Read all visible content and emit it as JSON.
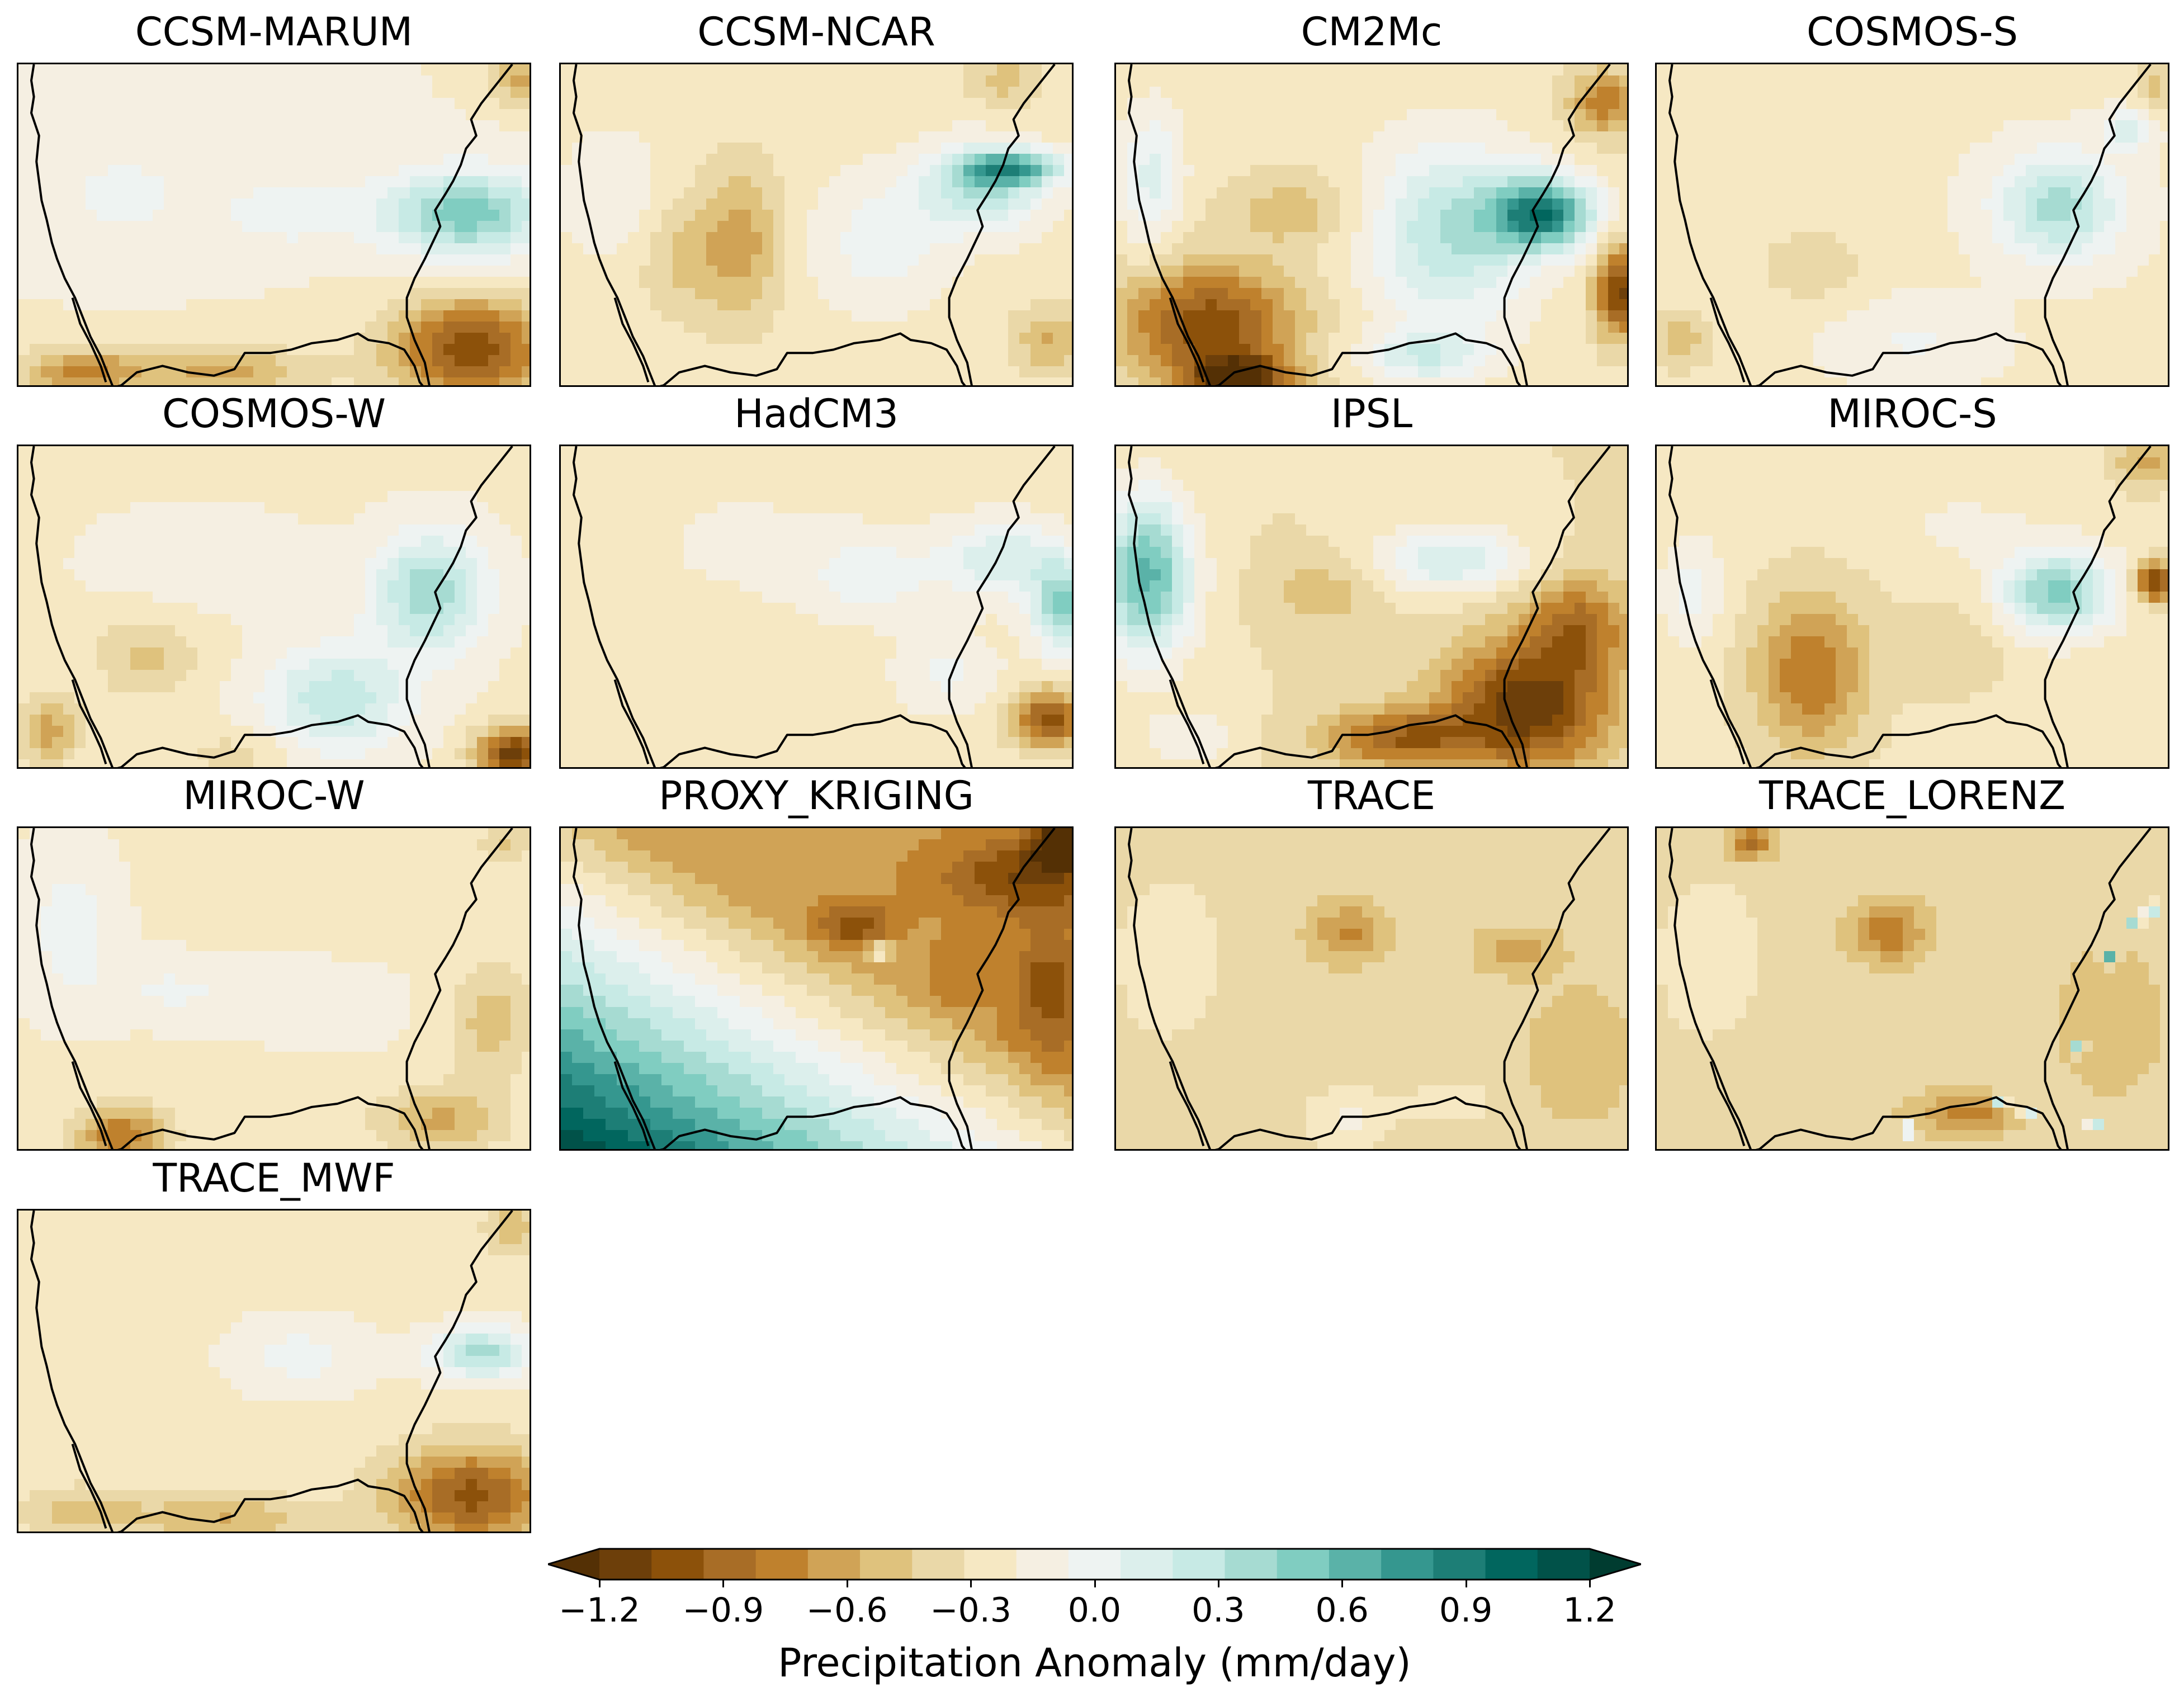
{
  "panels": [
    {
      "title": "CCSM-MARUM",
      "base": 0.15,
      "blobs": [
        [
          0.87,
          0.46,
          0.16,
          0.13,
          0.85
        ],
        [
          0.52,
          0.46,
          0.14,
          0.1,
          0.25
        ],
        [
          0.88,
          0.88,
          0.16,
          0.16,
          -1.0
        ],
        [
          0.4,
          0.95,
          0.18,
          0.08,
          -0.5
        ],
        [
          0.12,
          0.95,
          0.12,
          0.08,
          -0.6
        ],
        [
          0.98,
          0.05,
          0.06,
          0.08,
          -0.5
        ],
        [
          0.2,
          0.4,
          0.15,
          0.15,
          0.2
        ]
      ]
    },
    {
      "title": "CCSM-NCAR",
      "base": 0.08,
      "blobs": [
        [
          0.82,
          0.38,
          0.12,
          0.13,
          0.7
        ],
        [
          0.88,
          0.32,
          0.1,
          0.05,
          0.9
        ],
        [
          0.35,
          0.55,
          0.08,
          0.24,
          -0.45
        ],
        [
          0.23,
          0.6,
          0.08,
          0.18,
          -0.25
        ],
        [
          0.62,
          0.55,
          0.13,
          0.2,
          0.3
        ],
        [
          0.95,
          0.85,
          0.07,
          0.1,
          -0.4
        ],
        [
          0.86,
          0.05,
          0.07,
          0.08,
          -0.3
        ],
        [
          0.1,
          0.4,
          0.1,
          0.2,
          0.2
        ]
      ]
    },
    {
      "title": "CM2Mc",
      "base": 0.05,
      "blobs": [
        [
          0.83,
          0.46,
          0.1,
          0.11,
          1.3
        ],
        [
          0.65,
          0.52,
          0.16,
          0.28,
          0.7
        ],
        [
          0.18,
          0.8,
          0.17,
          0.18,
          -0.9
        ],
        [
          0.24,
          0.98,
          0.1,
          0.08,
          -1.1
        ],
        [
          0.98,
          0.7,
          0.05,
          0.14,
          -1.0
        ],
        [
          0.95,
          0.12,
          0.07,
          0.1,
          -0.6
        ],
        [
          0.07,
          0.35,
          0.06,
          0.22,
          0.45
        ],
        [
          0.35,
          0.45,
          0.13,
          0.11,
          -0.3
        ],
        [
          0.6,
          0.9,
          0.12,
          0.08,
          0.5
        ]
      ]
    },
    {
      "title": "COSMOS-S",
      "base": 0.12,
      "blobs": [
        [
          0.78,
          0.44,
          0.12,
          0.16,
          0.7
        ],
        [
          0.3,
          0.62,
          0.1,
          0.12,
          -0.25
        ],
        [
          0.05,
          0.85,
          0.06,
          0.1,
          -0.35
        ],
        [
          0.97,
          0.08,
          0.04,
          0.1,
          -0.3
        ],
        [
          0.92,
          0.2,
          0.05,
          0.06,
          0.5
        ],
        [
          0.5,
          0.85,
          0.15,
          0.12,
          0.2
        ]
      ]
    },
    {
      "title": "COSMOS-W",
      "base": 0.12,
      "blobs": [
        [
          0.8,
          0.45,
          0.11,
          0.18,
          0.75
        ],
        [
          0.62,
          0.78,
          0.14,
          0.16,
          0.6
        ],
        [
          0.25,
          0.65,
          0.1,
          0.13,
          -0.3
        ],
        [
          0.06,
          0.88,
          0.06,
          0.1,
          -0.5
        ],
        [
          0.96,
          0.95,
          0.07,
          0.08,
          -1.1
        ],
        [
          0.42,
          0.95,
          0.1,
          0.07,
          -0.2
        ],
        [
          0.35,
          0.35,
          0.2,
          0.15,
          0.15
        ]
      ]
    },
    {
      "title": "HadCM3",
      "base": 0.08,
      "blobs": [
        [
          0.86,
          0.35,
          0.12,
          0.12,
          0.5
        ],
        [
          0.98,
          0.5,
          0.06,
          0.14,
          0.85
        ],
        [
          0.95,
          0.84,
          0.07,
          0.09,
          -0.9
        ],
        [
          0.6,
          0.4,
          0.13,
          0.13,
          0.3
        ],
        [
          0.75,
          0.7,
          0.1,
          0.12,
          0.25
        ],
        [
          0.35,
          0.3,
          0.2,
          0.2,
          0.1
        ]
      ]
    },
    {
      "title": "IPSL",
      "base": 0.0,
      "blobs": [
        [
          0.06,
          0.4,
          0.09,
          0.25,
          1.1
        ],
        [
          0.8,
          0.8,
          0.16,
          0.2,
          -1.0
        ],
        [
          0.55,
          0.9,
          0.15,
          0.09,
          -0.7
        ],
        [
          0.65,
          0.35,
          0.14,
          0.1,
          0.6
        ],
        [
          0.4,
          0.45,
          0.1,
          0.1,
          -0.25
        ],
        [
          0.9,
          0.55,
          0.1,
          0.15,
          -0.6
        ],
        [
          0.15,
          0.9,
          0.1,
          0.1,
          0.25
        ]
      ]
    },
    {
      "title": "MIROC-S",
      "base": 0.05,
      "blobs": [
        [
          0.78,
          0.45,
          0.11,
          0.13,
          0.9
        ],
        [
          0.97,
          0.42,
          0.04,
          0.06,
          -1.0
        ],
        [
          0.3,
          0.7,
          0.11,
          0.24,
          -0.65
        ],
        [
          0.58,
          0.62,
          0.1,
          0.14,
          -0.2
        ],
        [
          0.95,
          0.05,
          0.06,
          0.08,
          -0.4
        ],
        [
          0.07,
          0.45,
          0.06,
          0.18,
          0.3
        ],
        [
          0.6,
          0.25,
          0.14,
          0.1,
          0.15
        ]
      ]
    },
    {
      "title": "MIROC-W",
      "base": 0.12,
      "blobs": [
        [
          0.2,
          0.95,
          0.09,
          0.09,
          -0.7
        ],
        [
          0.92,
          0.6,
          0.08,
          0.18,
          -0.35
        ],
        [
          0.82,
          0.9,
          0.12,
          0.1,
          -0.45
        ],
        [
          0.3,
          0.5,
          0.15,
          0.1,
          0.2
        ],
        [
          0.1,
          0.3,
          0.09,
          0.25,
          0.25
        ],
        [
          0.95,
          0.05,
          0.05,
          0.06,
          -0.3
        ],
        [
          0.6,
          0.55,
          0.15,
          0.12,
          0.15
        ]
      ]
    },
    {
      "title": "PROXY_KRIGING",
      "base": 0.0,
      "grad": [
        0.45,
        1.05,
        -2.0,
        1.8
      ],
      "blobs": [
        [
          0.9,
          0.15,
          0.16,
          0.12,
          -0.5
        ],
        [
          0.98,
          0.05,
          0.06,
          0.07,
          -0.9
        ],
        [
          0.95,
          0.5,
          0.07,
          0.2,
          -0.45
        ],
        [
          0.57,
          0.3,
          0.07,
          0.07,
          -0.45
        ],
        [
          0.62,
          0.38,
          0.03,
          0.03,
          0.6
        ],
        [
          0.78,
          0.45,
          0.06,
          0.1,
          -0.2
        ]
      ]
    },
    {
      "title": "TRACE",
      "base": -0.08,
      "blobs": [
        [
          0.45,
          0.32,
          0.07,
          0.09,
          -0.4
        ],
        [
          0.78,
          0.38,
          0.08,
          0.07,
          -0.3
        ],
        [
          0.1,
          0.4,
          0.1,
          0.25,
          0.2
        ],
        [
          0.45,
          0.9,
          0.08,
          0.1,
          0.25
        ],
        [
          0.65,
          0.85,
          0.1,
          0.08,
          0.15
        ],
        [
          0.9,
          0.7,
          0.1,
          0.2,
          -0.2
        ]
      ]
    },
    {
      "title": "TRACE_LORENZ",
      "base": -0.08,
      "blobs": [
        [
          0.45,
          0.32,
          0.07,
          0.09,
          -0.5
        ],
        [
          0.18,
          0.05,
          0.04,
          0.05,
          -0.6
        ],
        [
          0.6,
          0.88,
          0.1,
          0.06,
          -0.45
        ],
        [
          0.1,
          0.4,
          0.1,
          0.25,
          0.2
        ],
        [
          0.88,
          0.6,
          0.1,
          0.22,
          -0.2
        ]
      ],
      "spots": [
        [
          0.96,
          0.25
        ],
        [
          0.93,
          0.3
        ],
        [
          0.88,
          0.4
        ],
        [
          0.82,
          0.68
        ],
        [
          0.67,
          0.84
        ],
        [
          0.72,
          0.87
        ],
        [
          0.49,
          0.93
        ],
        [
          0.85,
          0.92
        ]
      ]
    },
    {
      "title": "TRACE_MWF",
      "base": 0.1,
      "blobs": [
        [
          0.9,
          0.44,
          0.1,
          0.08,
          0.7
        ],
        [
          0.88,
          0.88,
          0.16,
          0.15,
          -0.9
        ],
        [
          0.4,
          0.95,
          0.18,
          0.07,
          -0.4
        ],
        [
          0.12,
          0.93,
          0.12,
          0.08,
          -0.3
        ],
        [
          0.55,
          0.45,
          0.14,
          0.12,
          0.25
        ],
        [
          0.96,
          0.05,
          0.05,
          0.08,
          -0.4
        ]
      ]
    }
  ],
  "colorbar": {
    "label": "Precipitation Anomaly (mm/day)",
    "min": -1.2,
    "max": 1.2,
    "step": 0.15,
    "ticks": [
      "−1.2",
      "−0.9",
      "−0.6",
      "−0.3",
      "0.0",
      "0.3",
      "0.6",
      "0.9",
      "1.2"
    ],
    "tick_values": [
      -1.2,
      -0.9,
      -0.6,
      -0.3,
      0.0,
      0.3,
      0.6,
      0.9,
      1.2
    ],
    "colors": [
      "#543005",
      "#6d3f0a",
      "#8c510a",
      "#a86d26",
      "#bf812d",
      "#d0a356",
      "#dfc27d",
      "#ead8a8",
      "#f6e8c3",
      "#f5efe2",
      "#eef3f2",
      "#dcefec",
      "#c7eae5",
      "#a6dbd2",
      "#80cdc1",
      "#5ab2a8",
      "#35978f",
      "#1d7e76",
      "#01665e",
      "#015249",
      "#003c30"
    ]
  }
}
